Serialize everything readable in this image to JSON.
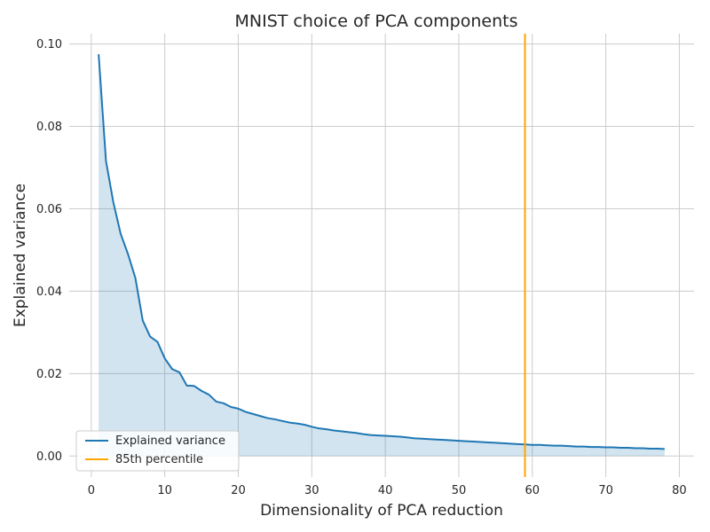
{
  "chart_data": {
    "type": "area",
    "title": "MNIST choice of PCA components",
    "xlabel": "Dimensionality of PCA reduction",
    "ylabel": "Explained variance",
    "xlim": [
      -3,
      82
    ],
    "ylim": [
      -0.0051,
      0.1025
    ],
    "xticks": [
      0,
      10,
      20,
      30,
      40,
      50,
      60,
      70,
      80
    ],
    "yticks": [
      0.0,
      0.02,
      0.04,
      0.06,
      0.08,
      0.1
    ],
    "ytick_labels": [
      "0.00",
      "0.02",
      "0.04",
      "0.06",
      "0.08",
      "0.10"
    ],
    "grid": true,
    "legend_position": "lower-left",
    "series": [
      {
        "name": "Explained variance",
        "color": "#1f77b4",
        "fill_color": "#1f77b4",
        "x": [
          1,
          2,
          3,
          4,
          5,
          6,
          7,
          8,
          9,
          10,
          11,
          12,
          13,
          14,
          15,
          16,
          17,
          18,
          19,
          20,
          21,
          22,
          23,
          24,
          25,
          26,
          27,
          28,
          29,
          30,
          31,
          32,
          33,
          34,
          35,
          36,
          37,
          38,
          39,
          40,
          41,
          42,
          43,
          44,
          45,
          46,
          47,
          48,
          49,
          50,
          51,
          52,
          53,
          54,
          55,
          56,
          57,
          58,
          59,
          60,
          61,
          62,
          63,
          64,
          65,
          66,
          67,
          68,
          69,
          70,
          71,
          72,
          73,
          74,
          75,
          76,
          77,
          78
        ],
        "y": [
          0.0975,
          0.0716,
          0.0616,
          0.0539,
          0.049,
          0.0432,
          0.0329,
          0.029,
          0.0277,
          0.0237,
          0.0211,
          0.0203,
          0.0171,
          0.017,
          0.0158,
          0.0149,
          0.0132,
          0.0128,
          0.0119,
          0.0115,
          0.0107,
          0.0102,
          0.0097,
          0.0092,
          0.0089,
          0.0085,
          0.0081,
          0.0079,
          0.0076,
          0.0071,
          0.0067,
          0.0065,
          0.0062,
          0.006,
          0.0058,
          0.0056,
          0.0053,
          0.0051,
          0.005,
          0.0049,
          0.0048,
          0.0047,
          0.0045,
          0.0043,
          0.0042,
          0.0041,
          0.004,
          0.0039,
          0.0038,
          0.0037,
          0.0036,
          0.0035,
          0.0034,
          0.0033,
          0.0032,
          0.0031,
          0.003,
          0.0029,
          0.0028,
          0.0027,
          0.0027,
          0.0026,
          0.0025,
          0.0025,
          0.0024,
          0.0023,
          0.0023,
          0.0022,
          0.0022,
          0.0021,
          0.0021,
          0.002,
          0.002,
          0.0019,
          0.0019,
          0.0018,
          0.0018,
          0.0017
        ]
      }
    ],
    "vline": {
      "name": "85th percentile",
      "x": 59,
      "color": "#ffa500"
    }
  }
}
